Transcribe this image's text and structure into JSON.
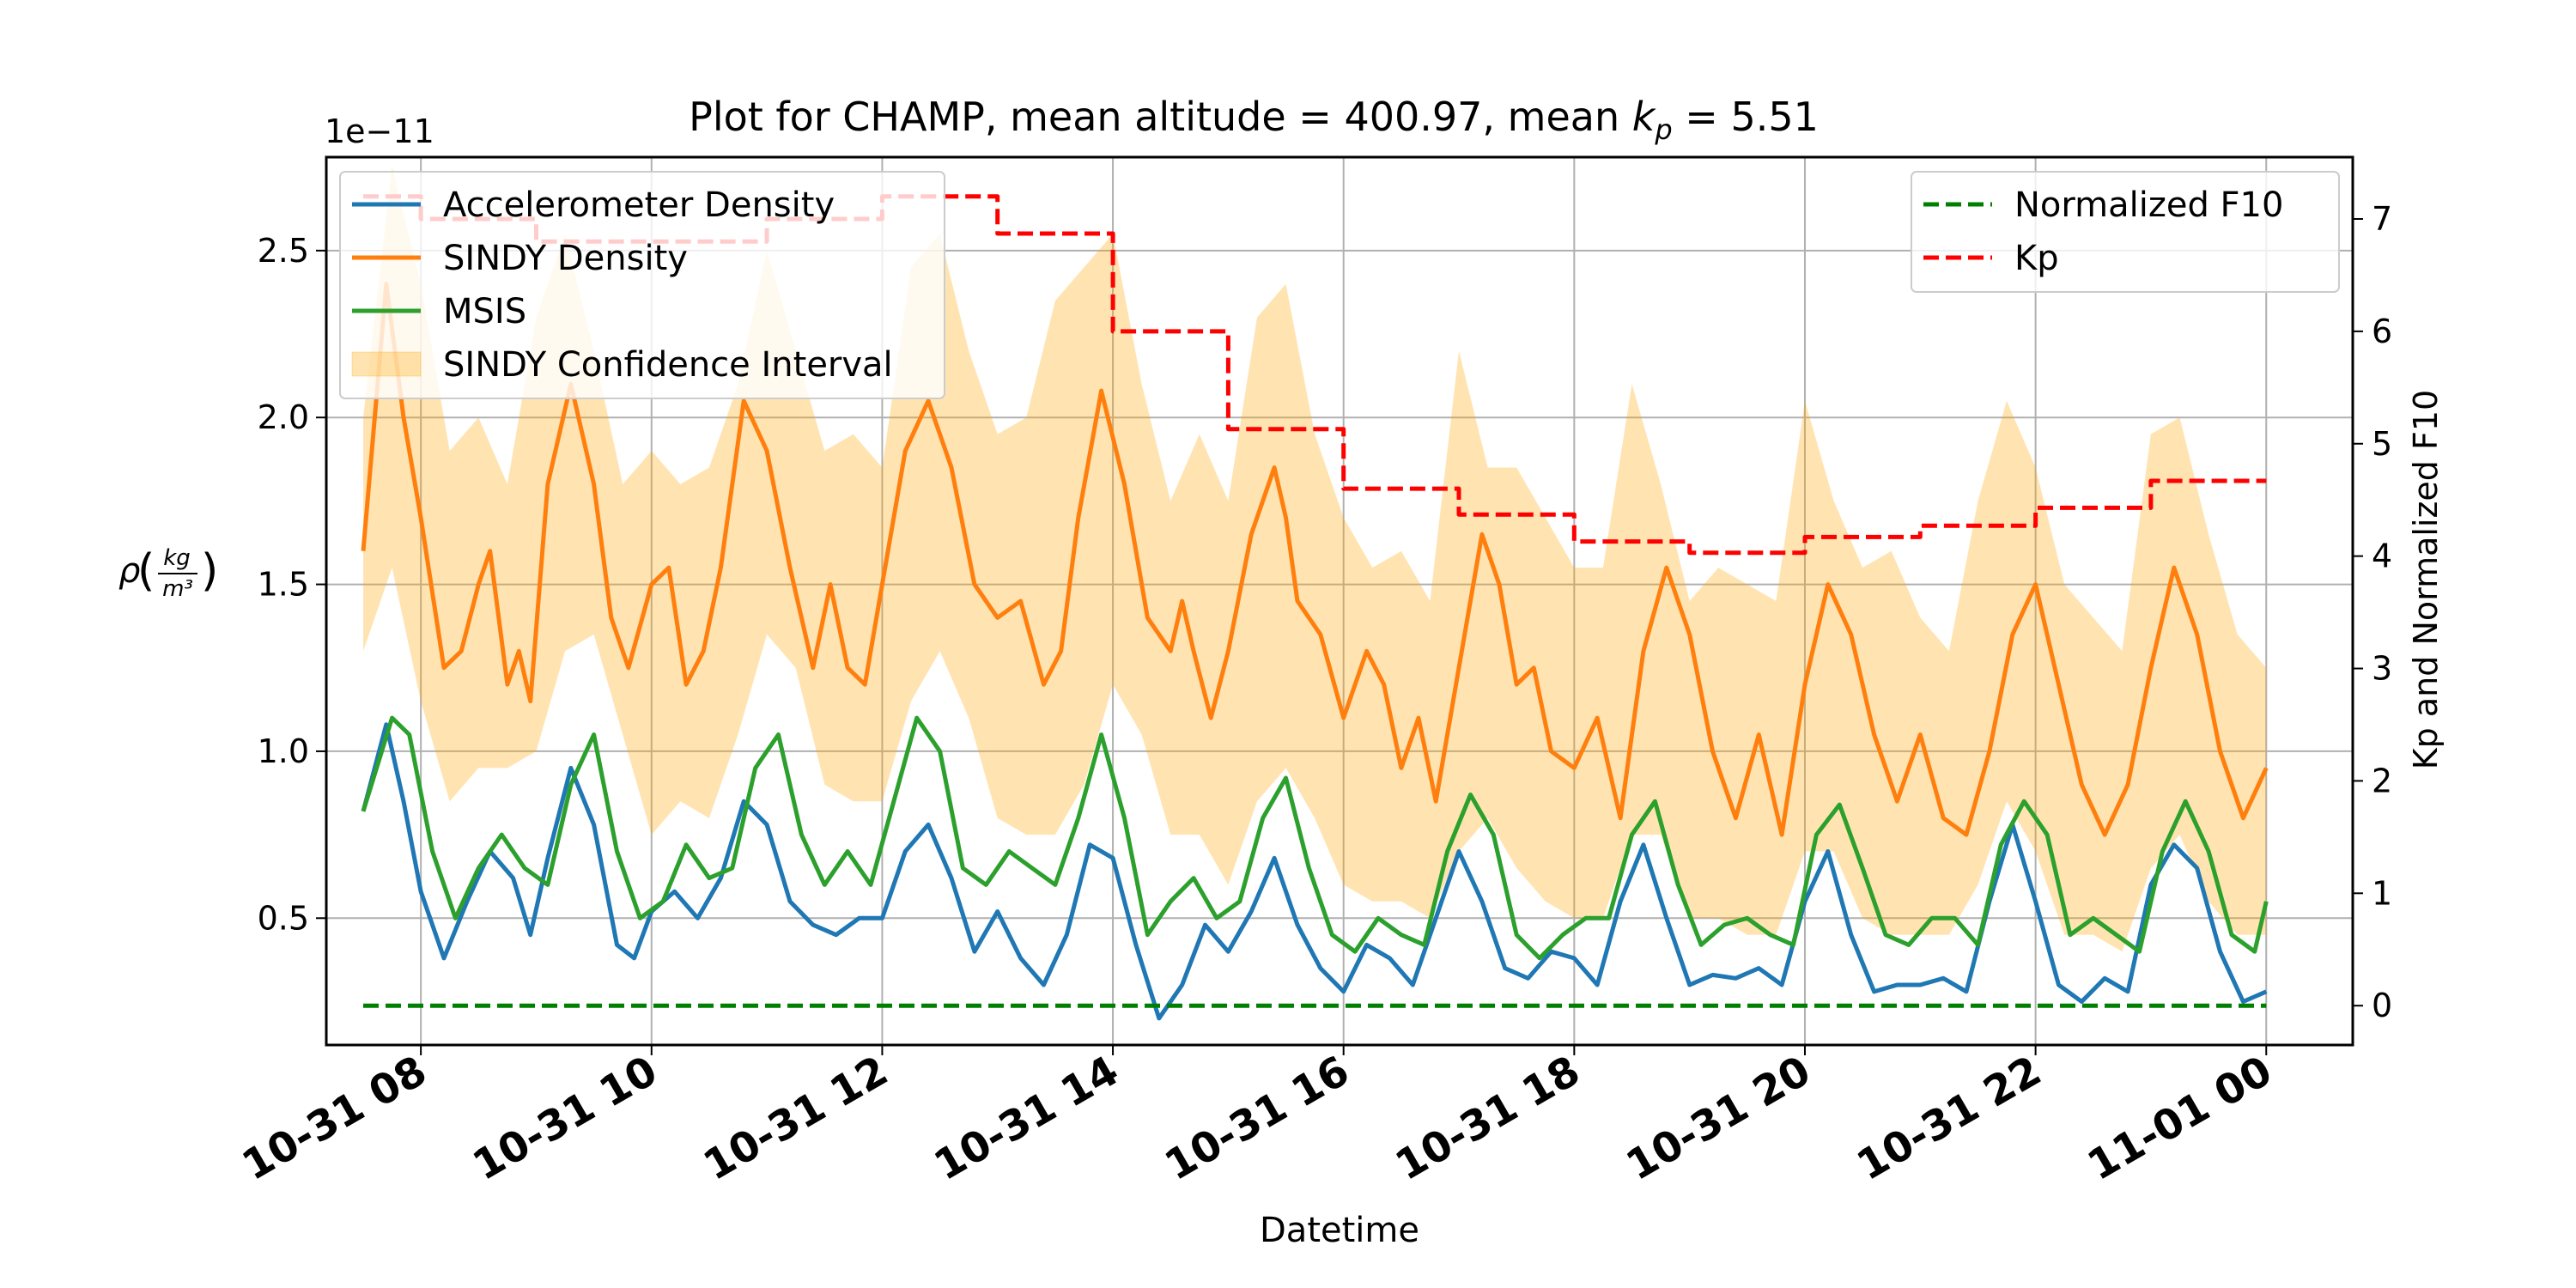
{
  "chart_data": {
    "type": "line",
    "title_prefix": "Plot for CHAMP, mean altitude = 400.97, mean ",
    "title_kp_base": "k",
    "title_kp_sub": "p",
    "title_suffix": " = 5.51",
    "xlabel": "Datetime",
    "ylabel_left": "ρ(kg/m³)",
    "ylabel_left_prefix": "ρ",
    "ylabel_left_num": "kg",
    "ylabel_left_den": "m³",
    "ylabel_right": "Kp and Normalized F10",
    "y_offset_text": "1e−11",
    "x_unit": "hours since 10-31 00:00",
    "xlim": [
      7.18,
      24.75
    ],
    "ylim_left": [
      0.12,
      2.78
    ],
    "ylim_right": [
      -0.35,
      7.55
    ],
    "grid": true,
    "x_ticks": [
      {
        "x": 8,
        "label": "10-31 08"
      },
      {
        "x": 10,
        "label": "10-31 10"
      },
      {
        "x": 12,
        "label": "10-31 12"
      },
      {
        "x": 14,
        "label": "10-31 14"
      },
      {
        "x": 16,
        "label": "10-31 16"
      },
      {
        "x": 18,
        "label": "10-31 18"
      },
      {
        "x": 20,
        "label": "10-31 20"
      },
      {
        "x": 22,
        "label": "10-31 22"
      },
      {
        "x": 24,
        "label": "11-01 00"
      }
    ],
    "y_ticks_left": [
      {
        "y": 0.5,
        "label": "0.5"
      },
      {
        "y": 1.0,
        "label": "1.0"
      },
      {
        "y": 1.5,
        "label": "1.5"
      },
      {
        "y": 2.0,
        "label": "2.0"
      },
      {
        "y": 2.5,
        "label": "2.5"
      }
    ],
    "y_ticks_right": [
      {
        "y": 0,
        "label": "0"
      },
      {
        "y": 1,
        "label": "1"
      },
      {
        "y": 2,
        "label": "2"
      },
      {
        "y": 3,
        "label": "3"
      },
      {
        "y": 4,
        "label": "4"
      },
      {
        "y": 5,
        "label": "5"
      },
      {
        "y": 6,
        "label": "6"
      },
      {
        "y": 7,
        "label": "7"
      }
    ],
    "legend_left": [
      {
        "label": "Accelerometer Density",
        "color": "#1f77b4",
        "kind": "line"
      },
      {
        "label": "SINDY Density",
        "color": "#ff7f0e",
        "kind": "line"
      },
      {
        "label": "MSIS",
        "color": "#2ca02c",
        "kind": "line"
      },
      {
        "label": "SINDY Confidence Interval",
        "color": "#ffa500",
        "kind": "patch"
      }
    ],
    "legend_right": [
      {
        "label": "Normalized F10",
        "color": "#008000",
        "kind": "dashed"
      },
      {
        "label": "Kp",
        "color": "#ff0000",
        "kind": "dashed"
      }
    ],
    "series": [
      {
        "name": "Accelerometer Density",
        "axis": "left",
        "color": "#1f77b4",
        "x": [
          7.5,
          7.7,
          7.85,
          8.0,
          8.2,
          8.4,
          8.6,
          8.8,
          8.95,
          9.1,
          9.3,
          9.5,
          9.7,
          9.85,
          10.0,
          10.2,
          10.4,
          10.6,
          10.8,
          11.0,
          11.2,
          11.4,
          11.6,
          11.8,
          12.0,
          12.2,
          12.4,
          12.6,
          12.8,
          13.0,
          13.2,
          13.4,
          13.6,
          13.8,
          14.0,
          14.2,
          14.4,
          14.6,
          14.8,
          15.0,
          15.2,
          15.4,
          15.6,
          15.8,
          16.0,
          16.2,
          16.4,
          16.6,
          16.8,
          17.0,
          17.2,
          17.4,
          17.6,
          17.8,
          18.0,
          18.2,
          18.4,
          18.6,
          18.8,
          19.0,
          19.2,
          19.4,
          19.6,
          19.8,
          20.0,
          20.2,
          20.4,
          20.6,
          20.8,
          21.0,
          21.2,
          21.4,
          21.6,
          21.8,
          22.0,
          22.2,
          22.4,
          22.6,
          22.8,
          23.0,
          23.2,
          23.4,
          23.6,
          23.8,
          24.0
        ],
        "y": [
          0.82,
          1.08,
          0.85,
          0.58,
          0.38,
          0.55,
          0.7,
          0.62,
          0.45,
          0.68,
          0.95,
          0.78,
          0.42,
          0.38,
          0.52,
          0.58,
          0.5,
          0.62,
          0.85,
          0.78,
          0.55,
          0.48,
          0.45,
          0.5,
          0.5,
          0.7,
          0.78,
          0.62,
          0.4,
          0.52,
          0.38,
          0.3,
          0.45,
          0.72,
          0.68,
          0.42,
          0.2,
          0.3,
          0.48,
          0.4,
          0.52,
          0.68,
          0.48,
          0.35,
          0.28,
          0.42,
          0.38,
          0.3,
          0.5,
          0.7,
          0.55,
          0.35,
          0.32,
          0.4,
          0.38,
          0.3,
          0.55,
          0.72,
          0.5,
          0.3,
          0.33,
          0.32,
          0.35,
          0.3,
          0.55,
          0.7,
          0.45,
          0.28,
          0.3,
          0.3,
          0.32,
          0.28,
          0.55,
          0.78,
          0.55,
          0.3,
          0.25,
          0.32,
          0.28,
          0.6,
          0.72,
          0.65,
          0.4,
          0.25,
          0.28
        ]
      },
      {
        "name": "SINDY Density",
        "axis": "left",
        "color": "#ff7f0e",
        "x": [
          7.5,
          7.7,
          7.85,
          8.0,
          8.2,
          8.35,
          8.5,
          8.6,
          8.75,
          8.85,
          8.95,
          9.1,
          9.3,
          9.5,
          9.65,
          9.8,
          10.0,
          10.15,
          10.3,
          10.45,
          10.6,
          10.8,
          11.0,
          11.2,
          11.4,
          11.55,
          11.7,
          11.85,
          12.0,
          12.2,
          12.4,
          12.6,
          12.8,
          13.0,
          13.2,
          13.4,
          13.55,
          13.7,
          13.9,
          14.1,
          14.3,
          14.5,
          14.6,
          14.7,
          14.85,
          15.0,
          15.2,
          15.4,
          15.5,
          15.6,
          15.8,
          16.0,
          16.2,
          16.35,
          16.5,
          16.65,
          16.8,
          17.0,
          17.2,
          17.35,
          17.5,
          17.65,
          17.8,
          18.0,
          18.2,
          18.4,
          18.6,
          18.8,
          19.0,
          19.2,
          19.4,
          19.6,
          19.8,
          20.0,
          20.2,
          20.4,
          20.6,
          20.8,
          21.0,
          21.2,
          21.4,
          21.6,
          21.8,
          22.0,
          22.2,
          22.4,
          22.6,
          22.8,
          23.0,
          23.2,
          23.4,
          23.6,
          23.8,
          24.0
        ],
        "y": [
          1.6,
          2.4,
          2.0,
          1.7,
          1.25,
          1.3,
          1.5,
          1.6,
          1.2,
          1.3,
          1.15,
          1.8,
          2.1,
          1.8,
          1.4,
          1.25,
          1.5,
          1.55,
          1.2,
          1.3,
          1.55,
          2.05,
          1.9,
          1.55,
          1.25,
          1.5,
          1.25,
          1.2,
          1.5,
          1.9,
          2.05,
          1.85,
          1.5,
          1.4,
          1.45,
          1.2,
          1.3,
          1.7,
          2.08,
          1.8,
          1.4,
          1.3,
          1.45,
          1.3,
          1.1,
          1.3,
          1.65,
          1.85,
          1.7,
          1.45,
          1.35,
          1.1,
          1.3,
          1.2,
          0.95,
          1.1,
          0.85,
          1.25,
          1.65,
          1.5,
          1.2,
          1.25,
          1.0,
          0.95,
          1.1,
          0.8,
          1.3,
          1.55,
          1.35,
          1.0,
          0.8,
          1.05,
          0.75,
          1.2,
          1.5,
          1.35,
          1.05,
          0.85,
          1.05,
          0.8,
          0.75,
          1.0,
          1.35,
          1.5,
          1.2,
          0.9,
          0.75,
          0.9,
          1.25,
          1.55,
          1.35,
          1.0,
          0.8,
          0.95
        ]
      },
      {
        "name": "MSIS",
        "axis": "left",
        "color": "#2ca02c",
        "x": [
          7.5,
          7.75,
          7.9,
          8.1,
          8.3,
          8.5,
          8.7,
          8.9,
          9.1,
          9.3,
          9.5,
          9.7,
          9.9,
          10.1,
          10.3,
          10.5,
          10.7,
          10.9,
          11.1,
          11.3,
          11.5,
          11.7,
          11.9,
          12.1,
          12.3,
          12.5,
          12.7,
          12.9,
          13.1,
          13.3,
          13.5,
          13.7,
          13.9,
          14.1,
          14.3,
          14.5,
          14.7,
          14.9,
          15.1,
          15.3,
          15.5,
          15.7,
          15.9,
          16.1,
          16.3,
          16.5,
          16.7,
          16.9,
          17.1,
          17.3,
          17.5,
          17.7,
          17.9,
          18.1,
          18.3,
          18.5,
          18.7,
          18.9,
          19.1,
          19.3,
          19.5,
          19.7,
          19.9,
          20.1,
          20.3,
          20.5,
          20.7,
          20.9,
          21.1,
          21.3,
          21.5,
          21.7,
          21.9,
          22.1,
          22.3,
          22.5,
          22.7,
          22.9,
          23.1,
          23.3,
          23.5,
          23.7,
          23.9,
          24.0
        ],
        "y": [
          0.82,
          1.1,
          1.05,
          0.7,
          0.5,
          0.65,
          0.75,
          0.65,
          0.6,
          0.9,
          1.05,
          0.7,
          0.5,
          0.55,
          0.72,
          0.62,
          0.65,
          0.95,
          1.05,
          0.75,
          0.6,
          0.7,
          0.6,
          0.85,
          1.1,
          1.0,
          0.65,
          0.6,
          0.7,
          0.65,
          0.6,
          0.8,
          1.05,
          0.8,
          0.45,
          0.55,
          0.62,
          0.5,
          0.55,
          0.8,
          0.92,
          0.65,
          0.45,
          0.4,
          0.5,
          0.45,
          0.42,
          0.7,
          0.87,
          0.75,
          0.45,
          0.38,
          0.45,
          0.5,
          0.5,
          0.75,
          0.85,
          0.6,
          0.42,
          0.48,
          0.5,
          0.45,
          0.42,
          0.75,
          0.84,
          0.65,
          0.45,
          0.42,
          0.5,
          0.5,
          0.42,
          0.72,
          0.85,
          0.75,
          0.45,
          0.5,
          0.45,
          0.4,
          0.7,
          0.85,
          0.7,
          0.45,
          0.4,
          0.55
        ]
      },
      {
        "name": "SINDY Confidence Interval",
        "axis": "left",
        "color": "#ffa500",
        "band": true,
        "x": [
          7.5,
          7.75,
          8.0,
          8.25,
          8.5,
          8.75,
          9.0,
          9.25,
          9.5,
          9.75,
          10.0,
          10.25,
          10.5,
          10.75,
          11.0,
          11.25,
          11.5,
          11.75,
          12.0,
          12.25,
          12.5,
          12.75,
          13.0,
          13.25,
          13.5,
          13.75,
          14.0,
          14.25,
          14.5,
          14.75,
          15.0,
          15.25,
          15.5,
          15.75,
          16.0,
          16.25,
          16.5,
          16.75,
          17.0,
          17.25,
          17.5,
          17.75,
          18.0,
          18.25,
          18.5,
          18.75,
          19.0,
          19.25,
          19.5,
          19.75,
          20.0,
          20.25,
          20.5,
          20.75,
          21.0,
          21.25,
          21.5,
          21.75,
          22.0,
          22.25,
          22.5,
          22.75,
          23.0,
          23.25,
          23.5,
          23.75,
          24.0
        ],
        "upper": [
          2.0,
          2.75,
          2.4,
          1.9,
          2.0,
          1.8,
          2.3,
          2.55,
          2.2,
          1.8,
          1.9,
          1.8,
          1.85,
          2.1,
          2.5,
          2.2,
          1.9,
          1.95,
          1.85,
          2.45,
          2.55,
          2.2,
          1.95,
          2.0,
          2.35,
          2.45,
          2.55,
          2.1,
          1.75,
          1.95,
          1.75,
          2.3,
          2.4,
          1.95,
          1.7,
          1.55,
          1.6,
          1.45,
          2.2,
          1.85,
          1.85,
          1.7,
          1.55,
          1.55,
          2.1,
          1.8,
          1.45,
          1.55,
          1.5,
          1.45,
          2.05,
          1.75,
          1.55,
          1.6,
          1.4,
          1.3,
          1.75,
          2.05,
          1.85,
          1.5,
          1.4,
          1.3,
          1.95,
          2.0,
          1.65,
          1.35,
          1.25
        ],
        "lower": [
          1.3,
          1.55,
          1.15,
          0.85,
          0.95,
          0.95,
          1.0,
          1.3,
          1.35,
          1.05,
          0.75,
          0.85,
          0.8,
          1.05,
          1.35,
          1.25,
          0.9,
          0.85,
          0.85,
          1.15,
          1.3,
          1.1,
          0.8,
          0.75,
          0.75,
          0.9,
          1.2,
          1.05,
          0.75,
          0.75,
          0.6,
          0.85,
          0.95,
          0.8,
          0.6,
          0.55,
          0.55,
          0.5,
          0.7,
          0.8,
          0.65,
          0.55,
          0.5,
          0.5,
          0.75,
          0.75,
          0.5,
          0.5,
          0.45,
          0.45,
          0.7,
          0.7,
          0.5,
          0.45,
          0.45,
          0.45,
          0.6,
          0.85,
          0.7,
          0.45,
          0.45,
          0.4,
          0.65,
          0.75,
          0.55,
          0.45,
          0.45
        ]
      },
      {
        "name": "Normalized F10",
        "axis": "right",
        "color": "#008000",
        "dashed": true,
        "x": [
          7.5,
          24.0
        ],
        "y": [
          0.0,
          0.0
        ]
      },
      {
        "name": "Kp",
        "axis": "right",
        "color": "#ff0000",
        "dashed": true,
        "step": true,
        "x": [
          7.5,
          8.0,
          9.0,
          10.0,
          11.0,
          12.0,
          13.0,
          14.0,
          15.0,
          16.0,
          17.0,
          18.0,
          19.0,
          20.0,
          21.0,
          22.0,
          23.0,
          24.0
        ],
        "y": [
          7.2,
          7.0,
          6.8,
          6.8,
          7.0,
          7.2,
          6.87,
          6.0,
          5.13,
          4.6,
          4.37,
          4.13,
          4.03,
          4.17,
          4.27,
          4.43,
          4.67,
          4.67
        ]
      }
    ]
  }
}
